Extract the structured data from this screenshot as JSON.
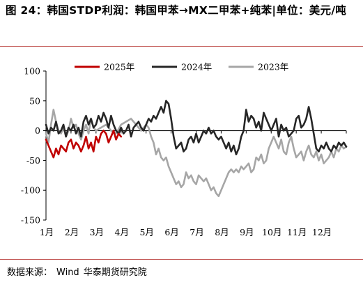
{
  "title": "图 24：韩国STDP利润：韩国甲苯→MX二甲苯+纯苯|单位：美元/吨",
  "source": {
    "label": "数据来源：",
    "provider": "Wind",
    "org": "华泰期货研究院"
  },
  "chart_data": {
    "type": "line",
    "title": "韩国STDP利润：韩国甲苯→MX二甲苯+纯苯",
    "unit": "美元/吨",
    "ylim": [
      -150,
      100
    ],
    "yticks": [
      100,
      50,
      0,
      -50,
      -100,
      -150
    ],
    "xticks": [
      "1月",
      "2月",
      "3月",
      "4月",
      "5月",
      "6月",
      "7月",
      "8月",
      "9月",
      "10月",
      "11月",
      "12月"
    ],
    "xlim_months": [
      1,
      13
    ],
    "grid": false,
    "legend_position": "top-center",
    "colors": {
      "2025年": "#c00000",
      "2024年": "#262626",
      "2023年": "#a6a6a6"
    },
    "series": [
      {
        "name": "2023年",
        "x": [
          1.0,
          1.1,
          1.2,
          1.3,
          1.4,
          1.5,
          1.6,
          1.7,
          1.8,
          1.9,
          2.0,
          2.1,
          2.2,
          2.3,
          2.4,
          2.5,
          2.6,
          2.7,
          2.8,
          2.9,
          3.0,
          3.2,
          3.4,
          3.6,
          3.8,
          4.0,
          4.2,
          4.4,
          4.6,
          4.8,
          5.0,
          5.1,
          5.2,
          5.3,
          5.4,
          5.5,
          5.6,
          5.7,
          5.8,
          5.9,
          6.0,
          6.1,
          6.2,
          6.3,
          6.4,
          6.5,
          6.6,
          6.7,
          6.8,
          6.9,
          7.0,
          7.1,
          7.2,
          7.3,
          7.4,
          7.5,
          7.6,
          7.7,
          7.8,
          7.9,
          8.0,
          8.1,
          8.2,
          8.3,
          8.4,
          8.5,
          8.6,
          8.7,
          8.8,
          8.9,
          9.0,
          9.1,
          9.2,
          9.3,
          9.4,
          9.5,
          9.6,
          9.7,
          9.8,
          9.9,
          10.0,
          10.1,
          10.2,
          10.3,
          10.4,
          10.5,
          10.6,
          10.7,
          10.8,
          10.9,
          11.0,
          11.1,
          11.2,
          11.3,
          11.4,
          11.5,
          11.6,
          11.7,
          11.8,
          11.9,
          12.0,
          12.1,
          12.2,
          12.3,
          12.4,
          12.5,
          12.6,
          12.7,
          12.8,
          12.9,
          13.0
        ],
        "values": [
          -5,
          -20,
          10,
          35,
          15,
          0,
          -5,
          5,
          -10,
          0,
          20,
          5,
          10,
          -5,
          -15,
          0,
          10,
          -5,
          20,
          5,
          0,
          5,
          10,
          0,
          -5,
          10,
          15,
          20,
          10,
          0,
          10,
          5,
          -10,
          -20,
          -40,
          -30,
          -45,
          -50,
          -45,
          -60,
          -70,
          -80,
          -90,
          -85,
          -95,
          -90,
          -70,
          -80,
          -75,
          -85,
          -90,
          -75,
          -80,
          -85,
          -80,
          -90,
          -100,
          -95,
          -105,
          -110,
          -100,
          -90,
          -80,
          -70,
          -65,
          -70,
          -65,
          -70,
          -60,
          -65,
          -60,
          -55,
          -70,
          -65,
          -45,
          -50,
          -40,
          -55,
          -50,
          -30,
          -20,
          -10,
          -20,
          -30,
          -15,
          -35,
          -40,
          -20,
          -10,
          -30,
          -45,
          -40,
          -35,
          -50,
          -35,
          -25,
          -40,
          -45,
          -35,
          -50,
          -40,
          -55,
          -50,
          -45,
          -35,
          -45,
          -30,
          -35,
          -25,
          -30,
          -27
        ]
      },
      {
        "name": "2024年",
        "x": [
          1.0,
          1.1,
          1.2,
          1.3,
          1.4,
          1.5,
          1.6,
          1.7,
          1.8,
          1.9,
          2.0,
          2.1,
          2.2,
          2.3,
          2.4,
          2.5,
          2.6,
          2.7,
          2.8,
          2.9,
          3.0,
          3.1,
          3.2,
          3.3,
          3.4,
          3.5,
          3.6,
          3.7,
          3.8,
          3.9,
          4.0,
          4.1,
          4.2,
          4.3,
          4.4,
          4.5,
          4.6,
          4.7,
          4.8,
          4.9,
          5.0,
          5.1,
          5.2,
          5.3,
          5.4,
          5.5,
          5.6,
          5.7,
          5.8,
          5.9,
          6.0,
          6.1,
          6.2,
          6.3,
          6.4,
          6.5,
          6.6,
          6.7,
          6.8,
          6.9,
          7.0,
          7.1,
          7.2,
          7.3,
          7.4,
          7.5,
          7.6,
          7.7,
          7.8,
          7.9,
          8.0,
          8.1,
          8.2,
          8.3,
          8.4,
          8.5,
          8.6,
          8.7,
          8.8,
          8.9,
          9.0,
          9.1,
          9.2,
          9.3,
          9.4,
          9.5,
          9.6,
          9.7,
          9.8,
          9.9,
          10.0,
          10.1,
          10.2,
          10.3,
          10.4,
          10.5,
          10.6,
          10.7,
          10.8,
          10.9,
          11.0,
          11.1,
          11.2,
          11.3,
          11.4,
          11.5,
          11.6,
          11.7,
          11.8,
          11.9,
          12.0,
          12.1,
          12.2,
          12.3,
          12.4,
          12.5,
          12.6,
          12.7,
          12.8,
          12.9,
          13.0
        ],
        "values": [
          10,
          -5,
          5,
          0,
          15,
          -5,
          0,
          10,
          -10,
          5,
          0,
          10,
          -5,
          5,
          -10,
          15,
          25,
          10,
          20,
          5,
          10,
          25,
          15,
          30,
          20,
          5,
          25,
          10,
          0,
          -5,
          5,
          -5,
          0,
          10,
          -10,
          5,
          10,
          15,
          5,
          0,
          10,
          20,
          15,
          25,
          20,
          30,
          40,
          30,
          50,
          45,
          20,
          -10,
          -30,
          -25,
          -20,
          -35,
          -30,
          -15,
          -10,
          -20,
          -5,
          -20,
          -10,
          0,
          -5,
          5,
          -5,
          0,
          -10,
          -15,
          -10,
          -20,
          -30,
          -20,
          -35,
          -25,
          -40,
          -30,
          -10,
          0,
          35,
          15,
          25,
          20,
          5,
          15,
          0,
          30,
          20,
          10,
          0,
          10,
          20,
          -10,
          10,
          0,
          5,
          -10,
          -5,
          0,
          20,
          25,
          5,
          10,
          20,
          40,
          20,
          -5,
          -30,
          -35,
          -25,
          -30,
          -20,
          -30,
          -35,
          -25,
          -30,
          -20,
          -25,
          -20,
          -27
        ]
      },
      {
        "name": "2025年",
        "x": [
          1.0,
          1.1,
          1.2,
          1.3,
          1.4,
          1.5,
          1.6,
          1.7,
          1.8,
          1.9,
          2.0,
          2.1,
          2.2,
          2.3,
          2.4,
          2.5,
          2.6,
          2.7,
          2.8,
          2.9,
          3.0,
          3.1,
          3.2,
          3.3,
          3.4,
          3.5,
          3.6,
          3.7,
          3.8,
          3.9,
          4.0
        ],
        "values": [
          -15,
          -25,
          -35,
          -45,
          -30,
          -40,
          -25,
          -30,
          -35,
          -20,
          -15,
          -30,
          -20,
          -25,
          -35,
          -25,
          -10,
          -30,
          -20,
          -35,
          -10,
          -20,
          -5,
          0,
          -5,
          -20,
          -10,
          0,
          -15,
          -5,
          -10
        ]
      }
    ]
  }
}
